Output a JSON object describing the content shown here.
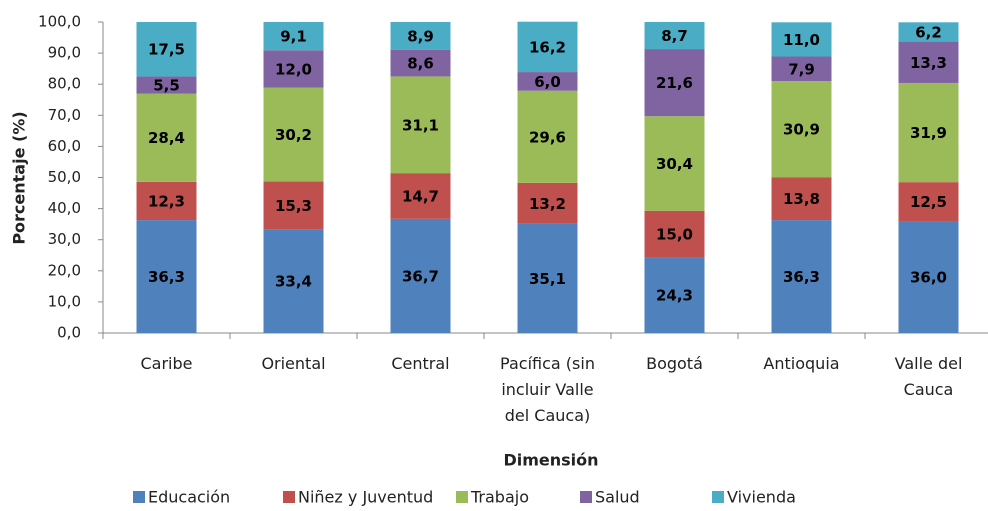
{
  "chart_data": {
    "type": "stacked_bar",
    "x_label": "Dimensión",
    "y_label": "Porcentaje (%)",
    "categories": [
      "Caribe",
      "Oriental",
      "Central",
      "Pacífica (sin incluir Valle del Cauca)",
      "Bogotá",
      "Antioquia",
      "Valle del Cauca"
    ],
    "series": [
      {
        "name": "Educación",
        "color": "#4f81bd",
        "values": [
          36.3,
          33.4,
          36.7,
          35.1,
          24.3,
          36.3,
          36.0
        ],
        "value_labels": [
          "36,3",
          "33,4",
          "36,7",
          "35,1",
          "24,3",
          "36,3",
          "36,0"
        ]
      },
      {
        "name": "Niñez y Juventud",
        "color": "#c0504d",
        "values": [
          12.3,
          15.3,
          14.7,
          13.2,
          15.0,
          13.8,
          12.5
        ],
        "value_labels": [
          "12,3",
          "15,3",
          "14,7",
          "13,2",
          "15,0",
          "13,8",
          "12,5"
        ]
      },
      {
        "name": "Trabajo",
        "color": "#9bbb59",
        "values": [
          28.4,
          30.2,
          31.1,
          29.6,
          30.4,
          30.9,
          31.9
        ],
        "value_labels": [
          "28,4",
          "30,2",
          "31,1",
          "29,6",
          "30,4",
          "30,9",
          "31,9"
        ]
      },
      {
        "name": "Salud",
        "color": "#8064a2",
        "values": [
          5.5,
          12.0,
          8.6,
          6.0,
          21.6,
          7.9,
          13.3
        ],
        "value_labels": [
          "5,5",
          "12,0",
          "8,6",
          "6,0",
          "21,6",
          "7,9",
          "13,3"
        ]
      },
      {
        "name": "Vivienda",
        "color": "#4bacc6",
        "values": [
          17.5,
          9.1,
          8.9,
          16.2,
          8.7,
          11.0,
          6.2
        ],
        "value_labels": [
          "17,5",
          "9,1",
          "8,9",
          "16,2",
          "8,7",
          "11,0",
          "6,2"
        ]
      }
    ],
    "ylim": [
      0,
      100
    ],
    "yticks": [
      {
        "value": 0,
        "label": "0,0"
      },
      {
        "value": 10,
        "label": "10,0"
      },
      {
        "value": 20,
        "label": "20,0"
      },
      {
        "value": 30,
        "label": "30,0"
      },
      {
        "value": 40,
        "label": "40,0"
      },
      {
        "value": 50,
        "label": "50,0"
      },
      {
        "value": 60,
        "label": "60,0"
      },
      {
        "value": 70,
        "label": "70,0"
      },
      {
        "value": 80,
        "label": "80,0"
      },
      {
        "value": 90,
        "label": "90,0"
      },
      {
        "value": 100,
        "label": "100,0"
      }
    ],
    "grid": false,
    "legend": "bottom"
  }
}
